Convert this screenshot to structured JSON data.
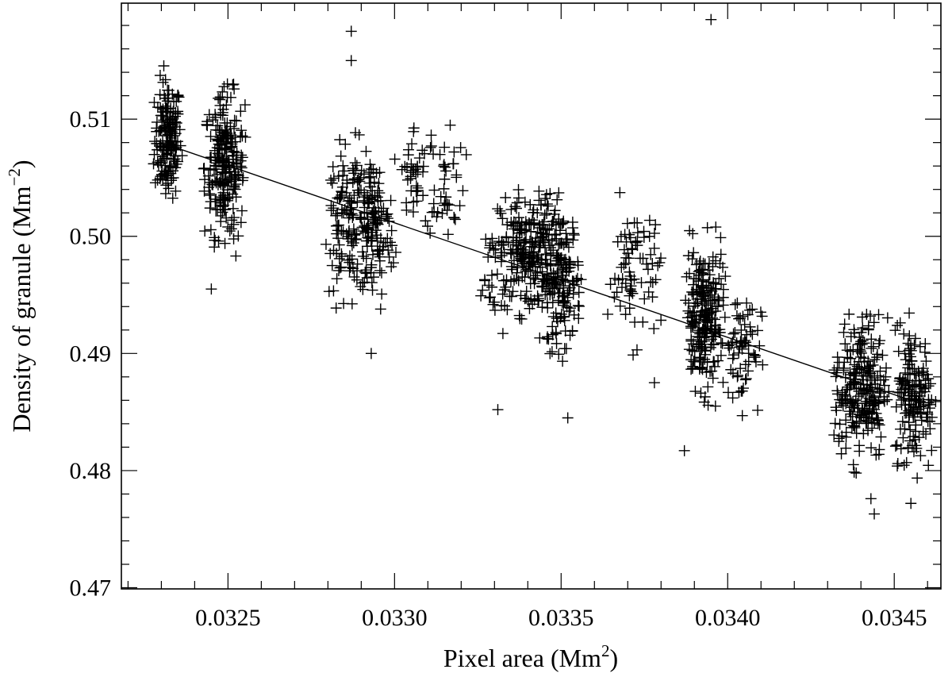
{
  "chart_data": {
    "type": "scatter",
    "title": "",
    "xlabel": "Pixel area (Mm",
    "xlabel_sup": "2",
    "xlabel_end": ")",
    "ylabel": "Density of granule (Mm",
    "ylabel_sup": "−2",
    "ylabel_end": ")",
    "xlim": [
      0.03218,
      0.03464
    ],
    "ylim": [
      0.4699,
      0.5199
    ],
    "x_ticks": [
      0.0325,
      0.033,
      0.0335,
      0.034,
      0.0345
    ],
    "x_tick_labels": [
      "0.0325",
      "0.0330",
      "0.0335",
      "0.0340",
      "0.0345"
    ],
    "x_minor_step": 0.0001,
    "y_ticks": [
      0.47,
      0.48,
      0.49,
      0.5,
      0.51
    ],
    "y_tick_labels": [
      "0.47",
      "0.48",
      "0.49",
      "0.50",
      "0.51"
    ],
    "y_minor_step": 0.002,
    "grid": false,
    "marker": "plus",
    "color": "#000000",
    "fit_line": {
      "x": [
        0.03233,
        0.03459
      ],
      "y": [
        0.5077,
        0.4856
      ]
    },
    "clusters": [
      {
        "x": 0.03232,
        "x_spread": 2e-05,
        "y": 0.5083,
        "y_spread": 0.0025,
        "n": 170
      },
      {
        "x": 0.03249,
        "x_spread": 3e-05,
        "y": 0.506,
        "y_spread": 0.003,
        "n": 230
      },
      {
        "x": 0.03287,
        "x_spread": 4e-05,
        "y": 0.5015,
        "y_spread": 0.003,
        "n": 140
      },
      {
        "x": 0.03294,
        "x_spread": 3e-05,
        "y": 0.5005,
        "y_spread": 0.003,
        "n": 110
      },
      {
        "x": 0.03306,
        "x_spread": 2e-05,
        "y": 0.5055,
        "y_spread": 0.002,
        "n": 35
      },
      {
        "x": 0.03315,
        "x_spread": 3e-05,
        "y": 0.505,
        "y_spread": 0.0025,
        "n": 45
      },
      {
        "x": 0.03329,
        "x_spread": 3e-05,
        "y": 0.4965,
        "y_spread": 0.0025,
        "n": 35
      },
      {
        "x": 0.0334,
        "x_spread": 4e-05,
        "y": 0.4985,
        "y_spread": 0.0025,
        "n": 210
      },
      {
        "x": 0.0335,
        "x_spread": 3e-05,
        "y": 0.4965,
        "y_spread": 0.003,
        "n": 170
      },
      {
        "x": 0.03372,
        "x_spread": 4e-05,
        "y": 0.497,
        "y_spread": 0.003,
        "n": 75
      },
      {
        "x": 0.03393,
        "x_spread": 3e-05,
        "y": 0.493,
        "y_spread": 0.003,
        "n": 230
      },
      {
        "x": 0.03404,
        "x_spread": 3e-05,
        "y": 0.4905,
        "y_spread": 0.0025,
        "n": 65
      },
      {
        "x": 0.0344,
        "x_spread": 4e-05,
        "y": 0.487,
        "y_spread": 0.003,
        "n": 240
      },
      {
        "x": 0.03456,
        "x_spread": 3e-05,
        "y": 0.4865,
        "y_spread": 0.0028,
        "n": 170
      }
    ],
    "outliers": [
      {
        "x": 0.03395,
        "y": 0.5185
      },
      {
        "x": 0.03287,
        "y": 0.5175
      },
      {
        "x": 0.03287,
        "y": 0.515
      },
      {
        "x": 0.03331,
        "y": 0.4852
      },
      {
        "x": 0.03387,
        "y": 0.4817
      },
      {
        "x": 0.03378,
        "y": 0.4875
      },
      {
        "x": 0.03293,
        "y": 0.49
      },
      {
        "x": 0.03245,
        "y": 0.4955
      },
      {
        "x": 0.03444,
        "y": 0.4763
      },
      {
        "x": 0.03455,
        "y": 0.4772
      },
      {
        "x": 0.03443,
        "y": 0.4776
      },
      {
        "x": 0.03352,
        "y": 0.4845
      }
    ]
  }
}
